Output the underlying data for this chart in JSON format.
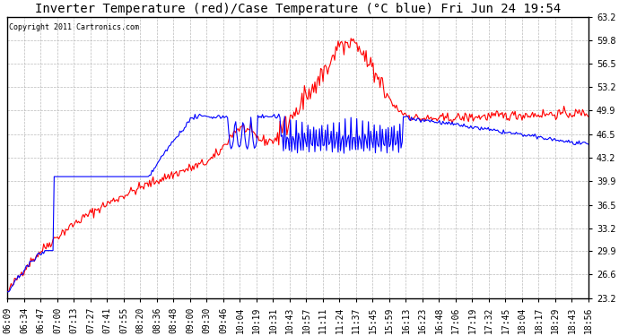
{
  "title": "Inverter Temperature (red)/Case Temperature (°C blue) Fri Jun 24 19:54",
  "copyright": "Copyright 2011 Cartronics.com",
  "yticks": [
    23.2,
    26.6,
    29.9,
    33.2,
    36.5,
    39.9,
    43.2,
    46.5,
    49.9,
    53.2,
    56.5,
    59.8,
    63.2
  ],
  "ylim": [
    23.2,
    63.2
  ],
  "xtick_labels": [
    "06:09",
    "06:34",
    "06:47",
    "07:00",
    "07:13",
    "07:27",
    "07:41",
    "07:55",
    "08:20",
    "08:36",
    "08:48",
    "09:00",
    "09:30",
    "09:46",
    "10:04",
    "10:19",
    "10:31",
    "10:43",
    "10:57",
    "11:11",
    "11:24",
    "11:37",
    "15:45",
    "15:59",
    "16:13",
    "16:23",
    "16:48",
    "17:06",
    "17:19",
    "17:32",
    "17:45",
    "18:04",
    "18:17",
    "18:29",
    "18:43",
    "18:56"
  ],
  "bg_color": "#ffffff",
  "plot_bg_color": "#ffffff",
  "grid_color": "#aaaaaa",
  "red_color": "#ff0000",
  "blue_color": "#0000ff",
  "title_fontsize": 10,
  "tick_fontsize": 7,
  "copyright_fontsize": 6
}
